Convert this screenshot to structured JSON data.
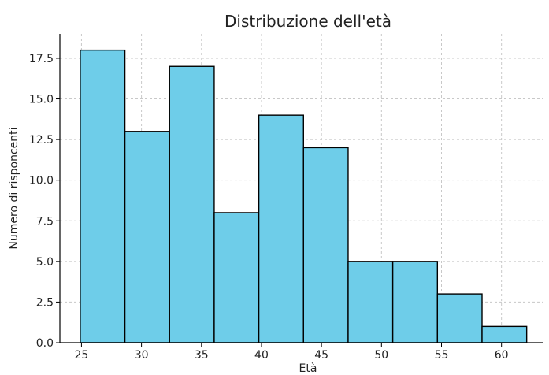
{
  "chart_data": {
    "type": "bar",
    "title": "Distribuzione dell'età",
    "xlabel": "Età",
    "ylabel": "Numero di risponcenti",
    "bin_edges": [
      24.9,
      28.62,
      32.34,
      36.06,
      39.78,
      43.5,
      47.22,
      50.94,
      54.66,
      58.38,
      62.1
    ],
    "values": [
      18,
      13,
      17,
      8,
      14,
      12,
      5,
      5,
      3,
      1
    ],
    "xlim": [
      23.2,
      63.5
    ],
    "ylim": [
      0,
      19
    ],
    "x_ticks": [
      25,
      30,
      35,
      40,
      45,
      50,
      55,
      60
    ],
    "y_ticks": [
      0.0,
      2.5,
      5.0,
      7.5,
      10.0,
      12.5,
      15.0,
      17.5
    ],
    "y_tick_labels": [
      "0.0",
      "2.5",
      "5.0",
      "7.5",
      "10.0",
      "12.5",
      "15.0",
      "17.5"
    ],
    "grid": true,
    "legend": "none",
    "colors": {
      "bar_fill": "#6ecde9",
      "bar_edge": "#000000",
      "grid": "#c8c8c8"
    }
  }
}
